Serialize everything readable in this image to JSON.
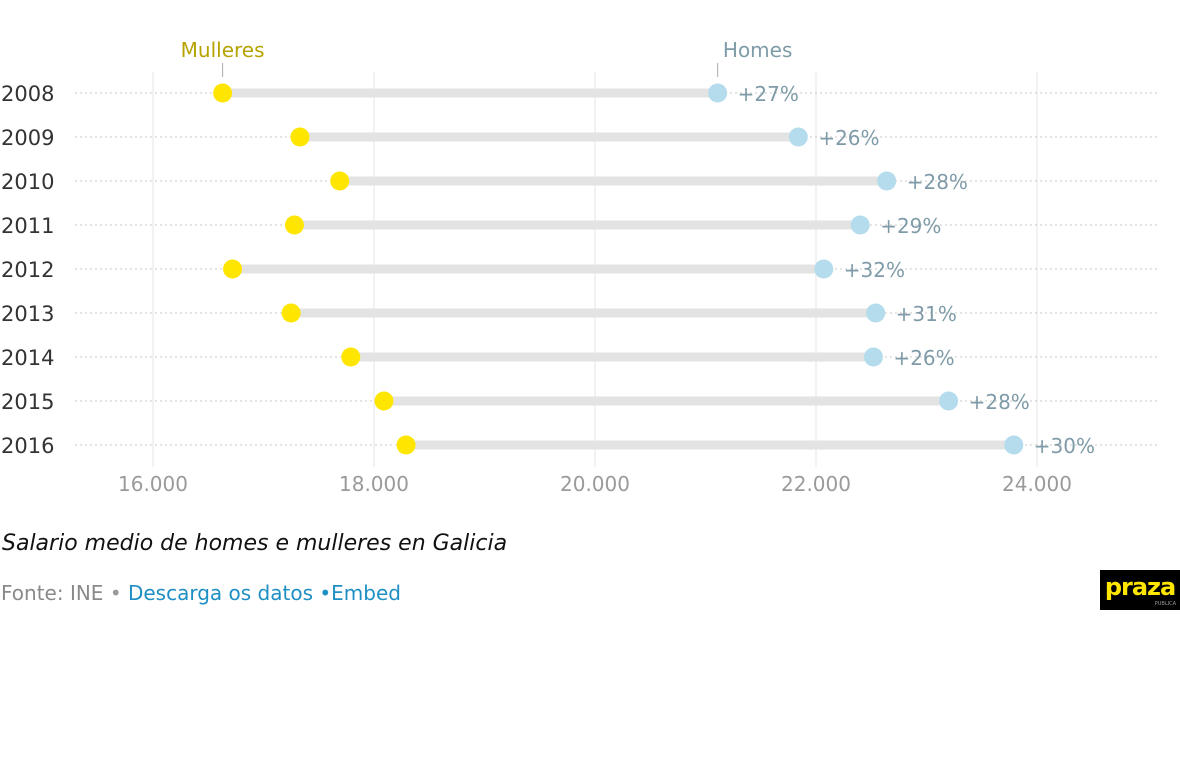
{
  "chart_data": {
    "type": "dumbbell",
    "title": "",
    "caption": "Salario medio de homes e mulleres en Galicia",
    "series": [
      {
        "name": "Mulleres",
        "color": "#ffe600",
        "label_color": "#b5a300"
      },
      {
        "name": "Homes",
        "color": "#b5dcec",
        "label_color": "#7f9ba8"
      }
    ],
    "rows": [
      {
        "year": "2008",
        "mulleres": 16630,
        "homes": 21110,
        "diff": "+27%"
      },
      {
        "year": "2009",
        "mulleres": 17330,
        "homes": 21840,
        "diff": "+26%"
      },
      {
        "year": "2010",
        "mulleres": 17690,
        "homes": 22640,
        "diff": "+28%"
      },
      {
        "year": "2011",
        "mulleres": 17280,
        "homes": 22400,
        "diff": "+29%"
      },
      {
        "year": "2012",
        "mulleres": 16720,
        "homes": 22070,
        "diff": "+32%"
      },
      {
        "year": "2013",
        "mulleres": 17250,
        "homes": 22540,
        "diff": "+31%"
      },
      {
        "year": "2014",
        "mulleres": 17790,
        "homes": 22520,
        "diff": "+26%"
      },
      {
        "year": "2015",
        "mulleres": 18090,
        "homes": 23200,
        "diff": "+28%"
      },
      {
        "year": "2016",
        "mulleres": 18290,
        "homes": 23790,
        "diff": "+30%"
      }
    ],
    "x_ticks": [
      {
        "value": 16000,
        "label": "16.000"
      },
      {
        "value": 18000,
        "label": "18.000"
      },
      {
        "value": 20000,
        "label": "20.000"
      },
      {
        "value": 22000,
        "label": "22.000"
      },
      {
        "value": 24000,
        "label": "24.000"
      }
    ],
    "xlim": [
      15300,
      25000
    ],
    "grid": true,
    "legend": "top, labels above first row"
  },
  "footer": {
    "source": "Fonte: INE",
    "bullet": "•",
    "download_link": "Descarga os datos",
    "embed_link": "•Embed"
  },
  "logo": {
    "text": "praza",
    "tagline": "PUBLICA"
  }
}
